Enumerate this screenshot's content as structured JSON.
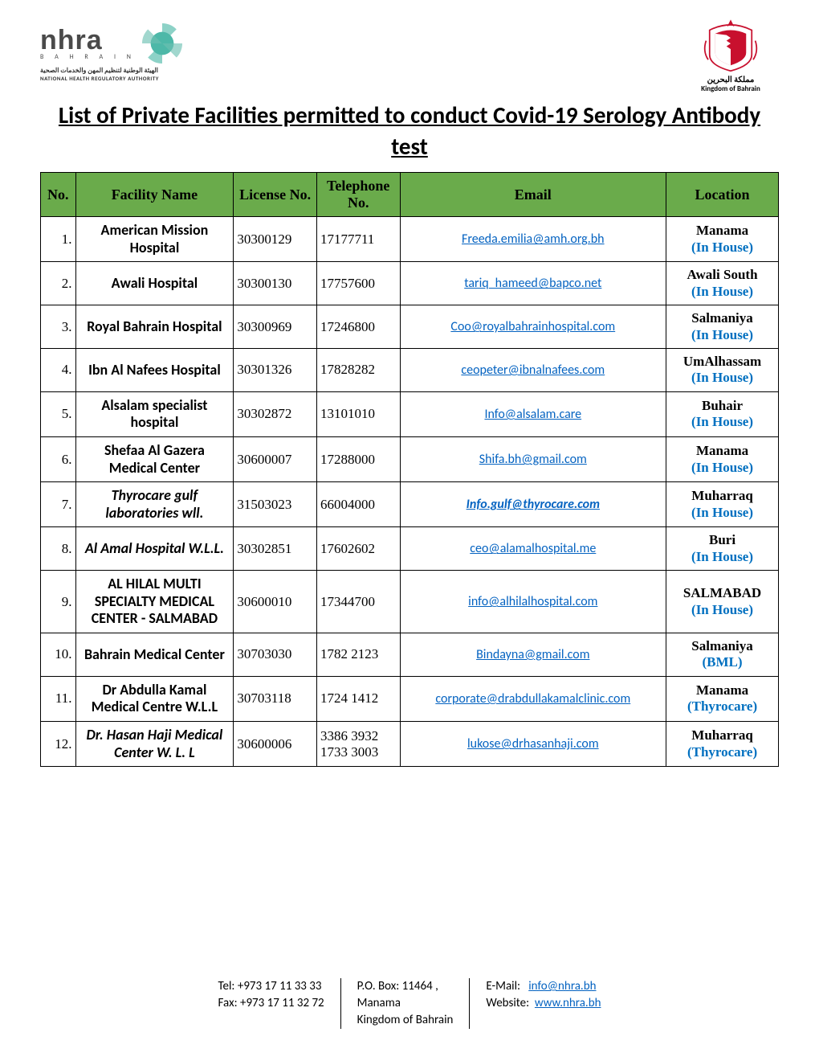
{
  "header": {
    "nhra_brand": "nhra",
    "nhra_sub": "B A H R A I N",
    "nhra_arabic": "الهيئة الوطنية لتنظيم المهن والخدمات الصحية",
    "nhra_eng": "NATIONAL HEALTH REGULATORY AUTHORITY",
    "kingdom_ar": "مملكة البحرين",
    "kingdom_en": "Kingdom of Bahrain"
  },
  "title": "List of Private Facilities permitted to conduct Covid-19 Serology Antibody test",
  "columns": [
    "No.",
    "Facility Name",
    "License No.",
    "Telephone No.",
    "Email",
    "Location"
  ],
  "rows": [
    {
      "no": "1.",
      "name": "American Mission Hospital",
      "italic": false,
      "license": "30300129",
      "tel": "17177711",
      "email": "Freeda.emilia@amh.org.bh",
      "email_italic": false,
      "loc": "Manama",
      "note": "(In House)"
    },
    {
      "no": "2.",
      "name": "Awali Hospital",
      "italic": false,
      "license": "30300130",
      "tel": "17757600",
      "email": "tariq_hameed@bapco.net",
      "email_italic": false,
      "loc": "Awali South",
      "note": "(In House)"
    },
    {
      "no": "3.",
      "name": "Royal Bahrain Hospital",
      "italic": false,
      "license": "30300969",
      "tel": "17246800",
      "email": "Coo@royalbahrainhospital.com",
      "email_italic": false,
      "loc": "Salmaniya",
      "note": "(In House)"
    },
    {
      "no": "4.",
      "name": "Ibn Al Nafees Hospital",
      "italic": false,
      "license": "30301326",
      "tel": "17828282",
      "email": "ceopeter@ibnalnafees.com",
      "email_italic": false,
      "loc": "UmAlhassam",
      "note": "(In House)"
    },
    {
      "no": "5.",
      "name": "Alsalam specialist hospital",
      "italic": false,
      "license": "30302872",
      "tel": "13101010",
      "email": "Info@alsalam.care",
      "email_italic": false,
      "loc": "Buhair",
      "note": "(In House)"
    },
    {
      "no": "6.",
      "name": "Shefaa Al Gazera Medical Center",
      "italic": false,
      "license": "30600007",
      "tel": "17288000",
      "email": "Shifa.bh@gmail.com",
      "email_italic": false,
      "loc": "Manama",
      "note": "(In House)"
    },
    {
      "no": "7.",
      "name": "Thyrocare gulf laboratories wll.",
      "italic": true,
      "license": "31503023",
      "tel": "66004000",
      "email": "Info.gulf@thyrocare.com",
      "email_italic": true,
      "loc": "Muharraq",
      "note": "(In House)"
    },
    {
      "no": "8.",
      "name": "Al Amal Hospital W.L.L.",
      "italic": true,
      "license": "30302851",
      "tel": "17602602",
      "email": "ceo@alamalhospital.me",
      "email_italic": false,
      "loc": "Buri",
      "note": "(In House)"
    },
    {
      "no": "9.",
      "name": "AL HILAL MULTI SPECIALTY MEDICAL CENTER - SALMABAD",
      "italic": false,
      "license": "30600010",
      "tel": "17344700",
      "email": "info@alhilalhospital.com",
      "email_italic": false,
      "loc": "SALMABAD",
      "note": "(In House)"
    },
    {
      "no": "10.",
      "name": "Bahrain Medical Center",
      "italic": false,
      "license": "30703030",
      "tel": "1782 2123",
      "email": "Bindayna@gmail.com",
      "email_italic": false,
      "loc": "Salmaniya",
      "note": "(BML)"
    },
    {
      "no": "11.",
      "name": "Dr Abdulla Kamal Medical Centre W.L.L",
      "italic": false,
      "license": "30703118",
      "tel": "1724 1412",
      "email": "corporate@drabdullakamalclinic.com",
      "email_italic": false,
      "loc": "Manama",
      "note": "(Thyrocare)"
    },
    {
      "no": "12.",
      "name": "Dr. Hasan Haji Medical Center W. L. L",
      "italic": true,
      "license": "30600006",
      "tel": "3386 3932\n1733 3003",
      "email": "lukose@drhasanhaji.com",
      "email_italic": false,
      "loc": "Muharraq",
      "note": "(Thyrocare)"
    }
  ],
  "footer": {
    "tel_label": "Tel:",
    "tel": "+973 17 11 33 33",
    "fax_label": "Fax:",
    "fax": "+973 17 11 32 72",
    "pobox": "P.O. Box: 11464 ,",
    "city": "Manama",
    "country": "Kingdom of Bahrain",
    "email_label": "E-Mail:",
    "email": "info@nhra.bh",
    "web_label": "Website:",
    "web": "www.nhra.bh"
  },
  "colors": {
    "header_bg": "#6aab4b",
    "link": "#0563c1",
    "note": "#0070c0"
  }
}
